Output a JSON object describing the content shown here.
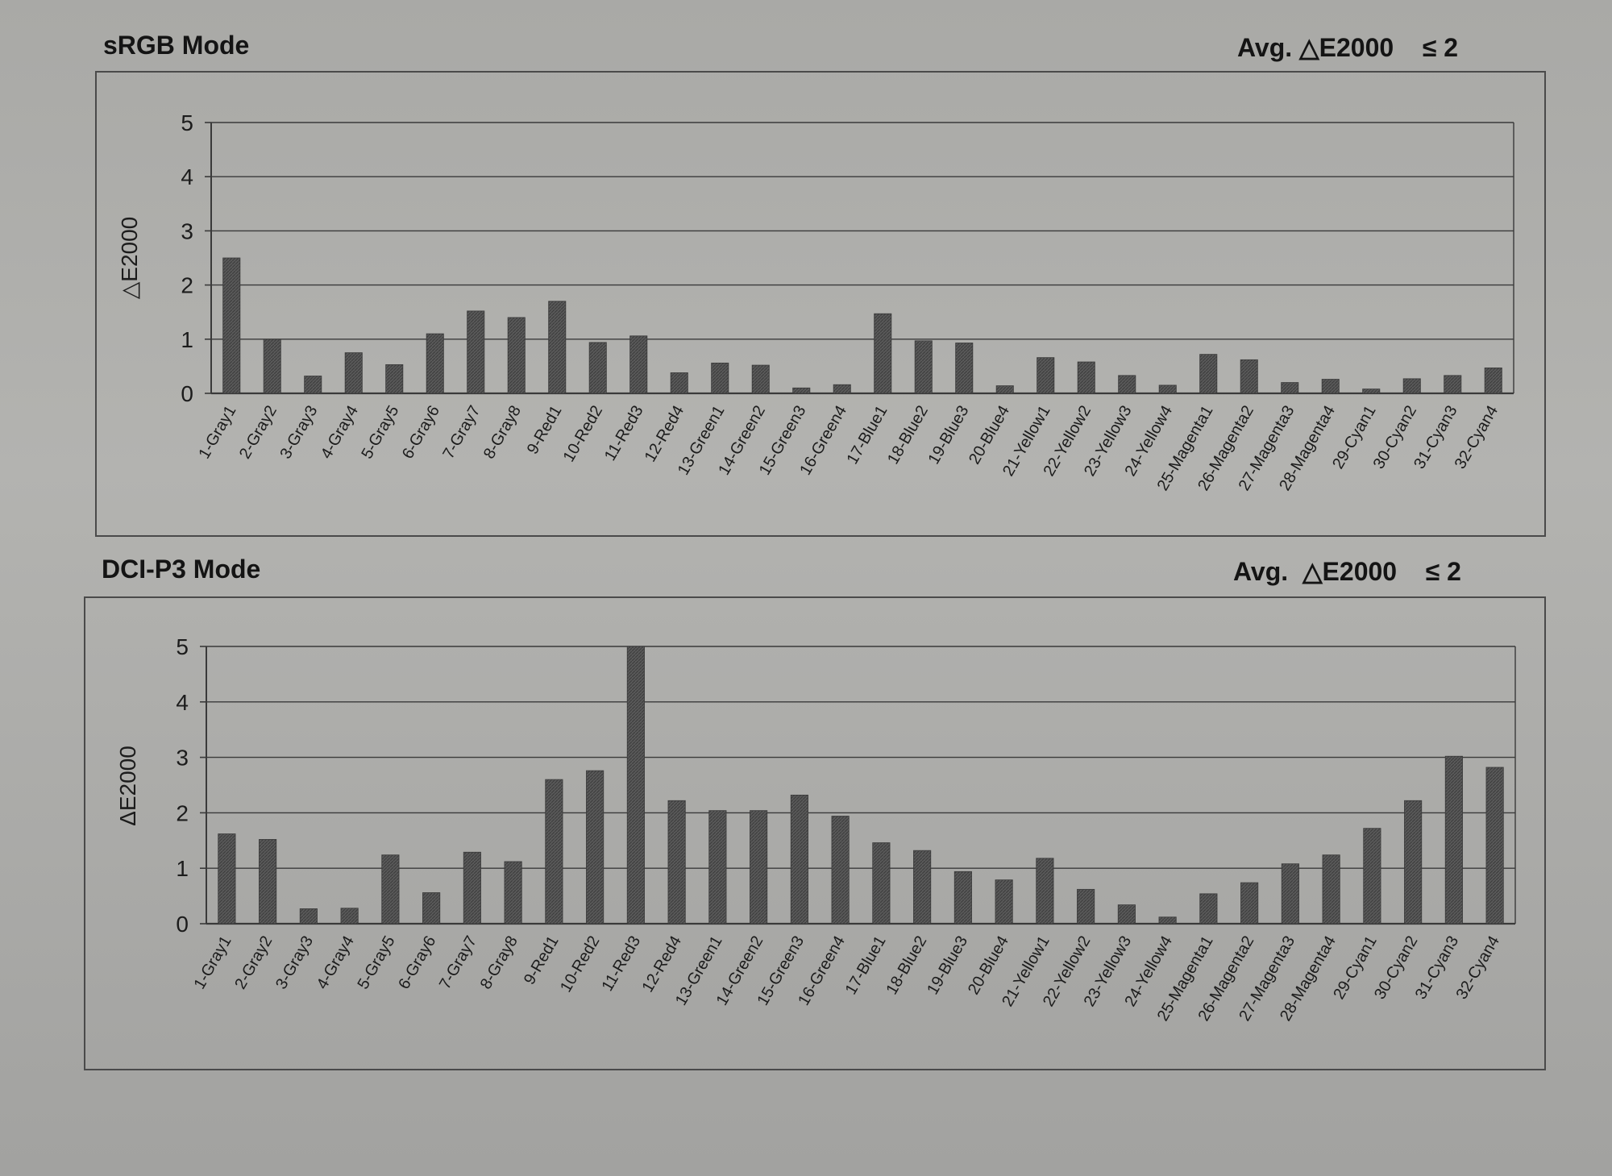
{
  "chart_data": [
    {
      "type": "bar",
      "title": "sRGB Mode",
      "subtitle": "Avg. △E2000    ≤ 2",
      "ylabel": "△E2000",
      "xlabel": "",
      "ylim": [
        0,
        5
      ],
      "yticks": [
        "0",
        "1",
        "2",
        "3",
        "4",
        "5"
      ],
      "grid": true,
      "categories": [
        "1-Gray1",
        "2-Gray2",
        "3-Gray3",
        "4-Gray4",
        "5-Gray5",
        "6-Gray6",
        "7-Gray7",
        "8-Gray8",
        "9-Red1",
        "10-Red2",
        "11-Red3",
        "12-Red4",
        "13-Green1",
        "14-Green2",
        "15-Green3",
        "16-Green4",
        "17-Blue1",
        "18-Blue2",
        "19-Blue3",
        "20-Blue4",
        "21-Yellow1",
        "22-Yellow2",
        "23-Yellow3",
        "24-Yellow4",
        "25-Magenta1",
        "26-Magenta2",
        "27-Magenta3",
        "28-Magenta4",
        "29-Cyan1",
        "30-Cyan2",
        "31-Cyan3",
        "32-Cyan4"
      ],
      "values": [
        2.5,
        1.0,
        0.32,
        0.75,
        0.53,
        1.1,
        1.52,
        1.4,
        1.7,
        0.94,
        1.06,
        0.38,
        0.56,
        0.52,
        0.1,
        0.16,
        1.47,
        0.97,
        0.93,
        0.14,
        0.66,
        0.58,
        0.33,
        0.15,
        0.72,
        0.62,
        0.2,
        0.26,
        0.08,
        0.27,
        0.33,
        0.47
      ],
      "bar_color": "#555555"
    },
    {
      "type": "bar",
      "title": "DCI-P3 Mode",
      "subtitle": "Avg.  △E2000    ≤ 2",
      "ylabel": "ΔE2000",
      "xlabel": "",
      "ylim": [
        0,
        5
      ],
      "yticks": [
        "0",
        "1",
        "2",
        "3",
        "4",
        "5"
      ],
      "grid": true,
      "categories": [
        "1-Gray1",
        "2-Gray2",
        "3-Gray3",
        "4-Gray4",
        "5-Gray5",
        "6-Gray6",
        "7-Gray7",
        "8-Gray8",
        "9-Red1",
        "10-Red2",
        "11-Red3",
        "12-Red4",
        "13-Green1",
        "14-Green2",
        "15-Green3",
        "16-Green4",
        "17-Blue1",
        "18-Blue2",
        "19-Blue3",
        "20-Blue4",
        "21-Yellow1",
        "22-Yellow2",
        "23-Yellow3",
        "24-Yellow4",
        "25-Magenta1",
        "26-Magenta2",
        "27-Magenta3",
        "28-Magenta4",
        "29-Cyan1",
        "30-Cyan2",
        "31-Cyan3",
        "32-Cyan4"
      ],
      "values": [
        1.62,
        1.52,
        0.27,
        0.28,
        1.24,
        0.56,
        1.29,
        1.12,
        2.6,
        2.76,
        5.0,
        2.22,
        2.04,
        2.04,
        2.32,
        1.94,
        1.46,
        1.32,
        0.94,
        0.79,
        1.18,
        0.62,
        0.34,
        0.12,
        0.54,
        0.74,
        1.08,
        1.24,
        1.72,
        2.22,
        3.02,
        2.82
      ],
      "bar_color": "#555555"
    }
  ]
}
